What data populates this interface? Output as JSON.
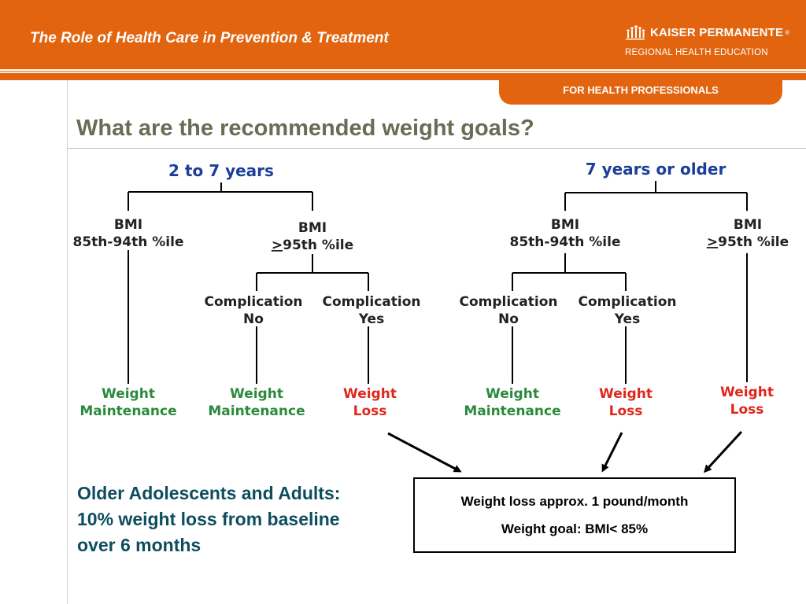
{
  "header": {
    "title": "The Role of Health Care in Prevention & Treatment",
    "brand_name": "KAISER PERMANENTE",
    "brand_registered": "®",
    "brand_subtitle": "REGIONAL HEALTH EDUCATION",
    "tab_label": "FOR HEALTH PROFESSIONALS",
    "logo_icon": "kaiser-logo-icon",
    "accent_color": "#e2640f"
  },
  "slide": {
    "title": "What are the recommended weight goals?"
  },
  "tree_left": {
    "heading": "2 to 7 years",
    "branch_a": {
      "line1": "BMI",
      "line2": "85th-94th %ile",
      "outcome1": "Weight",
      "outcome2": "Maintenance"
    },
    "branch_b": {
      "line1": "BMI",
      "line2_sym": ">",
      "line2_rest": "95th %ile",
      "comp_no": {
        "line1": "Complication",
        "line2": "No",
        "outcome1": "Weight",
        "outcome2": "Maintenance"
      },
      "comp_yes": {
        "line1": "Complication",
        "line2": "Yes",
        "outcome1": "Weight",
        "outcome2": "Loss"
      }
    }
  },
  "tree_right": {
    "heading": "7 years or older",
    "branch_a": {
      "line1": "BMI",
      "line2": "85th-94th %ile",
      "comp_no": {
        "line1": "Complication",
        "line2": "No",
        "outcome1": "Weight",
        "outcome2": "Maintenance"
      },
      "comp_yes": {
        "line1": "Complication",
        "line2": "Yes",
        "outcome1": "Weight",
        "outcome2": "Loss"
      }
    },
    "branch_b": {
      "line1": "BMI",
      "line2_sym": ">",
      "line2_rest": "95th %ile",
      "outcome1": "Weight",
      "outcome2": "Loss"
    }
  },
  "adults_note": {
    "line1": "Older Adolescents and Adults:",
    "line2": "10% weight loss from baseline",
    "line3": "over 6 months"
  },
  "goal_box": {
    "line1": "Weight loss approx. 1 pound/month",
    "line2": "Weight goal: BMI< 85%"
  },
  "colors": {
    "heading_blue": "#1d3d9b",
    "maintenance_green": "#2a8a3c",
    "loss_red": "#e0261c",
    "title_gray": "#6b6b56",
    "adults_teal": "#0d4d5e"
  }
}
